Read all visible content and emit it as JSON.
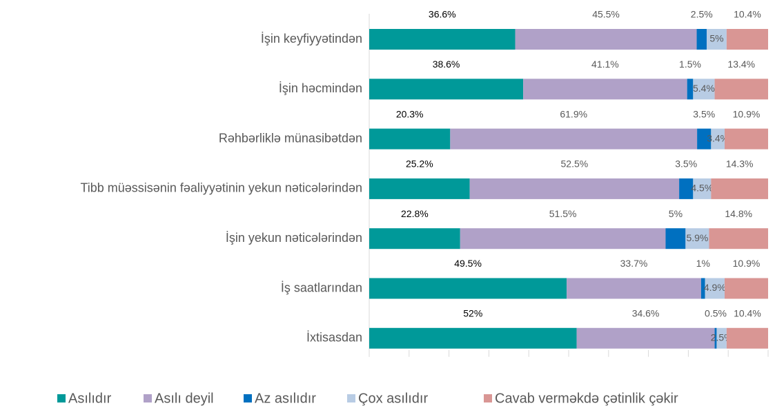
{
  "chart_data": {
    "type": "stacked-bar-horizontal",
    "categories": [
      "İşin keyfiyyətindən",
      "İşin həcmindən",
      "Rəhbərliklə münasibətdən",
      "Tibb müəssisənin fəaliyyətinin yekun nəticələrindən",
      "İşin yekun nəticələrindən",
      "İş saatlarından",
      "İxtisasdan"
    ],
    "series": [
      {
        "name": "Asılıdır",
        "color": "#009999",
        "values": [
          36.6,
          38.6,
          20.3,
          25.2,
          22.8,
          49.5,
          52
        ],
        "value_labels": [
          "36.6%",
          "38.6%",
          "20.3%",
          "25.2%",
          "22.8%",
          "49.5%",
          "52%"
        ]
      },
      {
        "name": "Asılı deyil",
        "color": "#b0a1c8",
        "values": [
          45.5,
          41.1,
          61.9,
          52.5,
          51.5,
          33.7,
          34.6
        ],
        "value_labels": [
          "45.5%",
          "41.1%",
          "61.9%",
          "52.5%",
          "51.5%",
          "33.7%",
          "34.6%"
        ]
      },
      {
        "name": "Az asılıdır",
        "color": "#0070c0",
        "values": [
          2.5,
          1.5,
          3.5,
          3.5,
          5,
          1,
          0.5
        ],
        "value_labels": [
          "2.5%",
          "1.5%",
          "3.5%",
          "3.5%",
          "5%",
          "1%",
          "0.5%"
        ]
      },
      {
        "name": "Çox asılıdır",
        "color": "#b8cce4",
        "values": [
          5,
          5.4,
          3.4,
          4.5,
          5.9,
          4.9,
          2.5
        ],
        "value_labels": [
          "5%",
          "5.4%",
          "3.4%",
          "4.5%",
          "5.9%",
          "4.9%",
          "2.5%"
        ]
      },
      {
        "name": "Cavab verməkdə çətinlik çəkir",
        "color": "#d99694",
        "values": [
          10.4,
          13.4,
          10.9,
          14.3,
          14.8,
          10.9,
          10.4
        ],
        "value_labels": [
          "10.4%",
          "13.4%",
          "10.9%",
          "14.3%",
          "14.8%",
          "10.9%",
          "10.4%"
        ]
      }
    ],
    "xlim": [
      0,
      100
    ],
    "xticks": [
      0,
      10,
      20,
      30,
      40,
      50,
      60,
      70,
      80,
      90,
      100
    ]
  }
}
